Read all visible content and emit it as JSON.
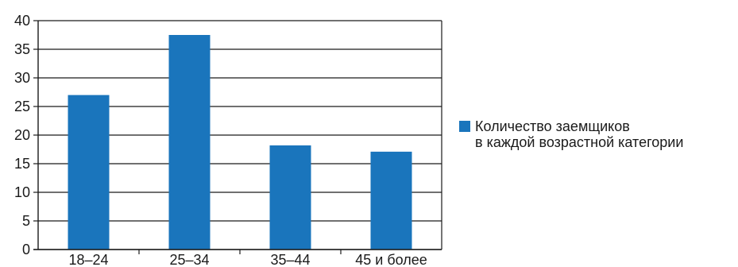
{
  "chart_data": {
    "type": "bar",
    "categories": [
      "18–24",
      "25–34",
      "35–44",
      "45 и более"
    ],
    "series": [
      {
        "name": "Количество заемщиков в каждой возрастной категории",
        "values": [
          27,
          37.5,
          18.2,
          17.1
        ]
      }
    ],
    "y_ticks": [
      "0",
      "5",
      "10",
      "15",
      "20",
      "25",
      "30",
      "35",
      "40"
    ],
    "ylim": [
      0,
      40
    ],
    "grid": "horizontal",
    "legend": {
      "placement": "right",
      "lines": [
        "Количество заемщиков",
        "в каждой возрастной категории"
      ]
    },
    "colors": {
      "bar": "#1a75bc",
      "grid": "#1a1a1a"
    }
  }
}
